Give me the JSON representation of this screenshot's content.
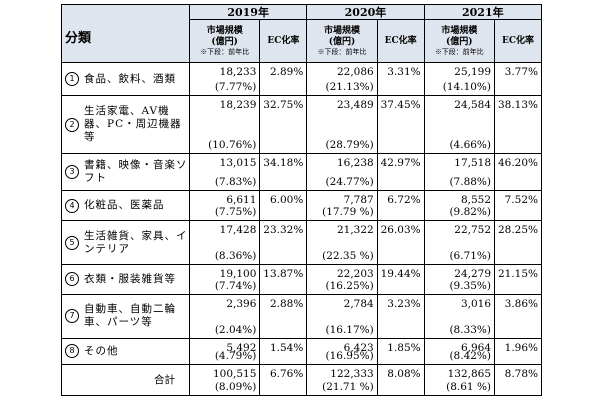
{
  "header": {
    "title": "分類",
    "years": [
      "2019年",
      "2020年",
      "2021年"
    ],
    "market_label": [
      "市場規模",
      "(億円)"
    ],
    "note": "※下段：前年比",
    "ec_label": "EC化率"
  },
  "rows": [
    {
      "num": "1",
      "name": "食品、飲料、酒類",
      "y2019": {
        "amt": "18,233",
        "growth": "(7.77%)",
        "rate": "2.89%"
      },
      "y2020": {
        "amt": "22,086",
        "growth": "(21.13%)",
        "rate": "3.31%"
      },
      "y2021": {
        "amt": "25,199",
        "growth": "(14.10%)",
        "rate": "3.77%"
      }
    },
    {
      "num": "2",
      "name": "生活家電、AV機器、PC・周辺機器等",
      "y2019": {
        "amt": "18,239",
        "growth": "(10.76%)",
        "rate": "32.75%"
      },
      "y2020": {
        "amt": "23,489",
        "growth": "(28.79%)",
        "rate": "37.45%"
      },
      "y2021": {
        "amt": "24,584",
        "growth": "(4.66%)",
        "rate": "38.13%"
      }
    },
    {
      "num": "3",
      "name": "書籍、映像・音楽ソフト",
      "y2019": {
        "amt": "13,015",
        "growth": "(7.83%)",
        "rate": "34.18%"
      },
      "y2020": {
        "amt": "16,238",
        "growth": "(24.77%)",
        "rate": "42.97%"
      },
      "y2021": {
        "amt": "17,518",
        "growth": "(7.88%)",
        "rate": "46.20%"
      }
    },
    {
      "num": "4",
      "name": "化粧品、医薬品",
      "y2019": {
        "amt": "6,611",
        "growth": "(7.75%)",
        "rate": "6.00%"
      },
      "y2020": {
        "amt": "7,787",
        "growth": "(17.79 %)",
        "rate": "6.72%"
      },
      "y2021": {
        "amt": "8,552",
        "growth": "(9.82%)",
        "rate": "7.52%"
      }
    },
    {
      "num": "5",
      "name": "生活雑貨、家具、インテリア",
      "y2019": {
        "amt": "17,428",
        "growth": "(8.36%)",
        "rate": "23.32%"
      },
      "y2020": {
        "amt": "21,322",
        "growth": "(22.35 %)",
        "rate": "26.03%"
      },
      "y2021": {
        "amt": "22,752",
        "growth": "(6.71%)",
        "rate": "28.25%"
      }
    },
    {
      "num": "6",
      "name": "衣類・服装雑貨等",
      "y2019": {
        "amt": "19,100",
        "growth": "(7.74%)",
        "rate": "13.87%"
      },
      "y2020": {
        "amt": "22,203",
        "growth": "(16.25%)",
        "rate": "19.44%"
      },
      "y2021": {
        "amt": "24,279",
        "growth": "(9.35%)",
        "rate": "21.15%"
      }
    },
    {
      "num": "7",
      "name": "自動車、自動二輪車、パーツ等",
      "y2019": {
        "amt": "2,396",
        "growth": "(2.04%)",
        "rate": "2.88%"
      },
      "y2020": {
        "amt": "2,784",
        "growth": "(16.17%)",
        "rate": "3.23%"
      },
      "y2021": {
        "amt": "3,016",
        "growth": "(8.33%)",
        "rate": "3.86%"
      }
    },
    {
      "num": "8",
      "name": "その他",
      "y2019": {
        "amt": "5,492",
        "growth": "(4.79%)",
        "rate": "1.54%"
      },
      "y2020": {
        "amt": "6,423",
        "growth": "(16.95%)",
        "rate": "1.85%"
      },
      "y2021": {
        "amt": "6,964",
        "growth": "(8.42%)",
        "rate": "1.96%"
      }
    }
  ],
  "total": {
    "label": "合計",
    "y2019": {
      "amt": "100,515",
      "growth": "(8.09%)",
      "rate": "6.76%"
    },
    "y2020": {
      "amt": "122,333",
      "growth": "(21.71 %)",
      "rate": "8.08%"
    },
    "y2021": {
      "amt": "132,865",
      "growth": "(8.61 %)",
      "rate": "8.78%"
    }
  }
}
